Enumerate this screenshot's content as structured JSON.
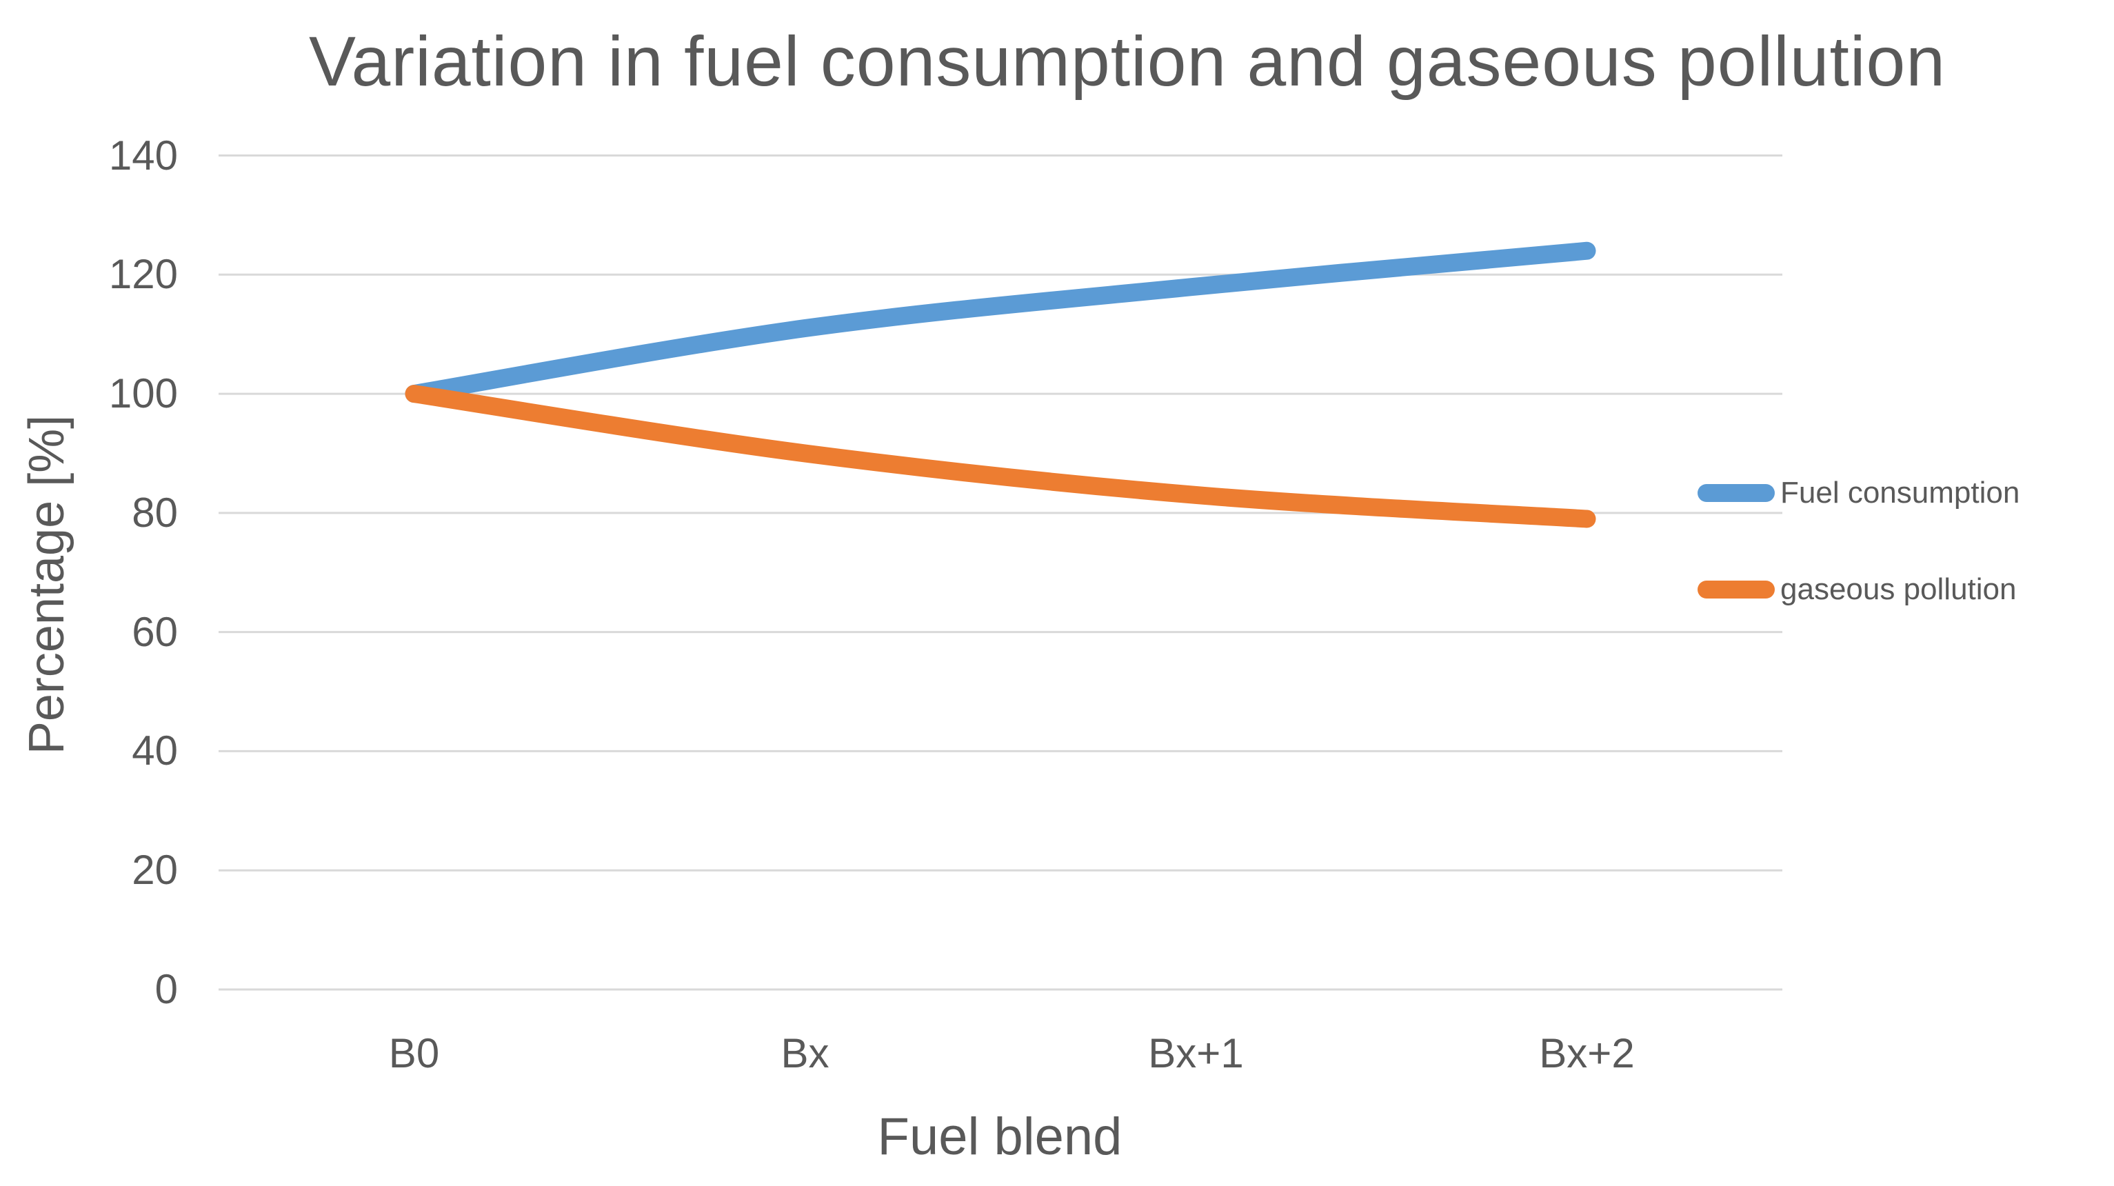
{
  "chart_data": {
    "type": "line",
    "title": "Variation in fuel consumption and gaseous pollution",
    "xlabel": "Fuel blend",
    "ylabel": "Percentage [%]",
    "categories": [
      "B0",
      "Bx",
      "Bx+1",
      "Bx+2"
    ],
    "series": [
      {
        "name": "Fuel consumption",
        "color": "#5B9BD5",
        "values": [
          100,
          111,
          118,
          124
        ]
      },
      {
        "name": "gaseous pollution",
        "color": "#ED7D31",
        "values": [
          100,
          90,
          83,
          79
        ]
      }
    ],
    "y_ticks": [
      140,
      120,
      100,
      80,
      60,
      40,
      20,
      0
    ],
    "ylim": [
      0,
      140
    ],
    "grid": "horizontal",
    "gridline_color": "#D9D9D9",
    "text_color": "#595959",
    "background": "#FFFFFF",
    "legend_position": "right",
    "smooth_lines": true,
    "line_width": 26
  }
}
